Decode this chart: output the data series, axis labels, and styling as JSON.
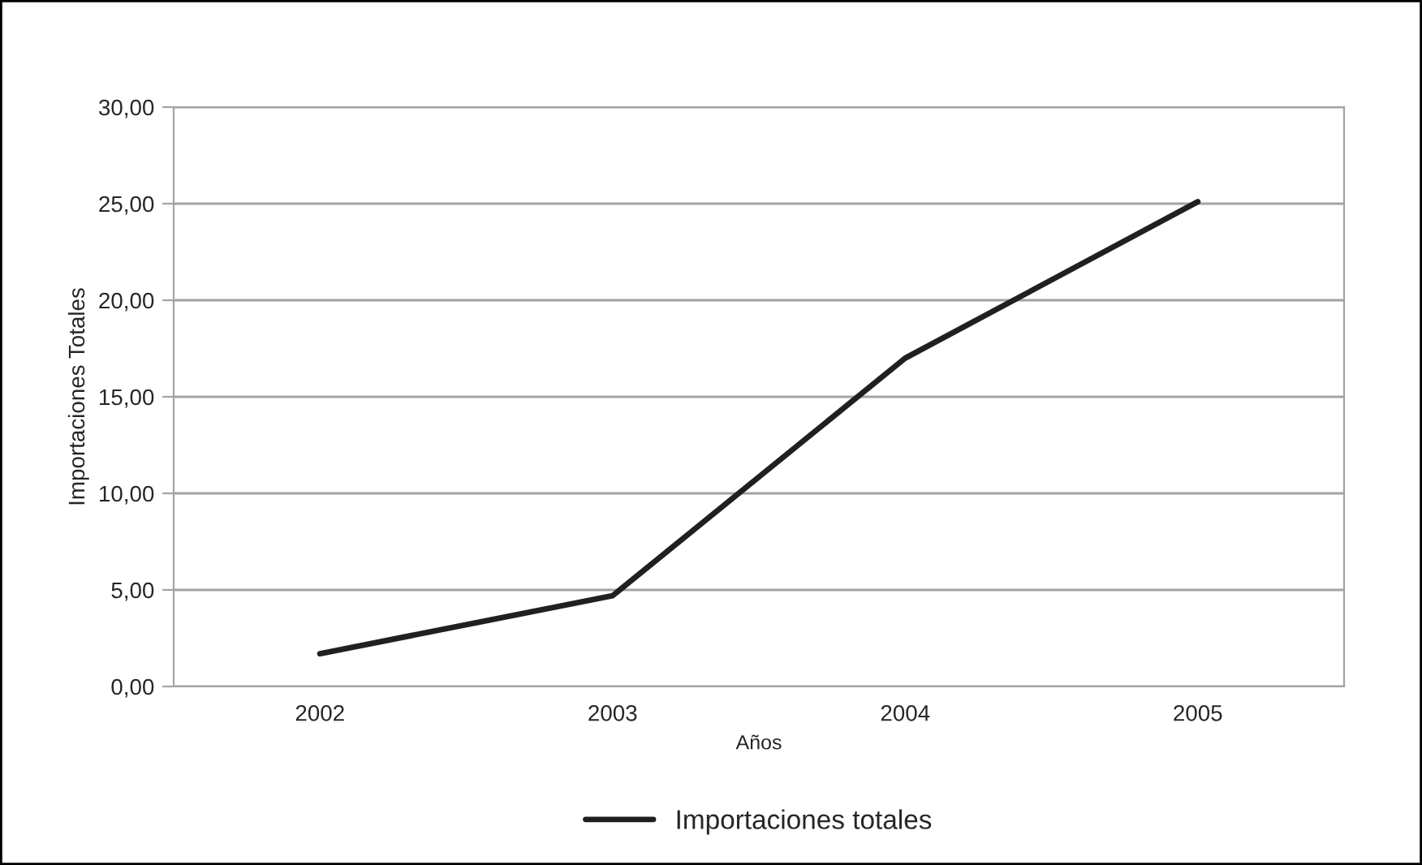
{
  "chart_data": {
    "type": "line",
    "xlabel": "Años",
    "ylabel": "Importaciones Totales",
    "categories": [
      "2002",
      "2003",
      "2004",
      "2005"
    ],
    "series": [
      {
        "name": "Importaciones totales",
        "color": "#231f20",
        "values": [
          1.7,
          4.7,
          17.0,
          25.1
        ]
      }
    ],
    "ylim": [
      0,
      30
    ],
    "yticks": [
      {
        "value": 0,
        "label": "0,00"
      },
      {
        "value": 5,
        "label": "5,00"
      },
      {
        "value": 10,
        "label": "10,00"
      },
      {
        "value": 15,
        "label": "15,00"
      },
      {
        "value": 20,
        "label": "20,00"
      },
      {
        "value": 25,
        "label": "25,00"
      },
      {
        "value": 30,
        "label": "30,00"
      }
    ],
    "grid": "y",
    "legend": "bottom",
    "marker": "none",
    "line_style": "solid"
  }
}
